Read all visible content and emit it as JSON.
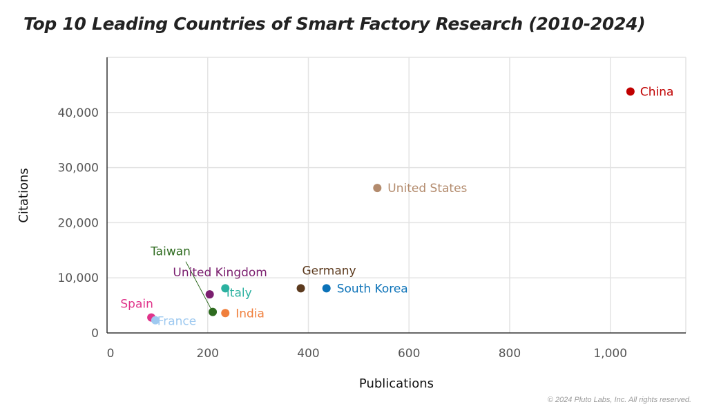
{
  "chart_data": {
    "type": "scatter",
    "title": "Top 10 Leading Countries of Smart Factory Research (2010-2024)",
    "xlabel": "Publications",
    "ylabel": "Citations",
    "xlim": [
      0,
      1150
    ],
    "ylim": [
      0,
      50000
    ],
    "xticks": [
      0,
      200,
      400,
      600,
      800,
      1000
    ],
    "xtick_labels": [
      "0",
      "200",
      "400",
      "600",
      "800",
      "1,000"
    ],
    "yticks": [
      0,
      10000,
      20000,
      30000,
      40000
    ],
    "ytick_labels": [
      "0",
      "10,000",
      "20,000",
      "30,000",
      "40,000"
    ],
    "grid": true,
    "points": [
      {
        "label": "China",
        "x": 1040,
        "y": 43800,
        "color": "#c00000"
      },
      {
        "label": "United States",
        "x": 537,
        "y": 26300,
        "color": "#b38b6d"
      },
      {
        "label": "South Korea",
        "x": 436,
        "y": 8100,
        "color": "#0b72b8"
      },
      {
        "label": "Germany",
        "x": 385,
        "y": 8100,
        "color": "#5c3a1e"
      },
      {
        "label": "Italy",
        "x": 235,
        "y": 8100,
        "color": "#2bb1a0"
      },
      {
        "label": "India",
        "x": 235,
        "y": 3600,
        "color": "#f07f3c"
      },
      {
        "label": "United Kingdom",
        "x": 204,
        "y": 7000,
        "color": "#7b1f6f"
      },
      {
        "label": "Taiwan",
        "x": 210,
        "y": 3800,
        "color": "#2e6b1f"
      },
      {
        "label": "Spain",
        "x": 88,
        "y": 2800,
        "color": "#e0338a"
      },
      {
        "label": "France",
        "x": 96,
        "y": 2300,
        "color": "#9ec9f0"
      }
    ]
  },
  "copyright": "© 2024 Pluto Labs, Inc. All rights reserved."
}
